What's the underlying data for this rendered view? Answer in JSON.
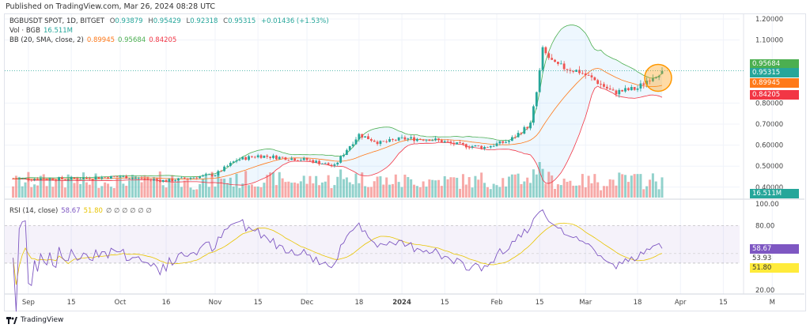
{
  "published": "Published on TradingView.com, Mar 26, 2024 08:28 UTC",
  "symbol": "BGBUSDT SPOT, 1D, BITGET",
  "ohlc": {
    "o_label": "O",
    "o": "0.93879",
    "h_label": "H",
    "h": "0.95429",
    "l_label": "L",
    "l": "0.92318",
    "c_label": "C",
    "c": "0.95315",
    "change": "+0.01436 (+1.53%)"
  },
  "vol": {
    "label": "Vol · BGB",
    "value": "16.511M"
  },
  "bb": {
    "label": "BB (20, SMA, close, 2)",
    "basis": "0.89945",
    "upper": "0.95684",
    "lower": "0.84205"
  },
  "rsi": {
    "label": "RSI (14, close)",
    "value": "58.67",
    "ma": "51.80",
    "extras": "∅ ∅ ∅ ∅ ∅ ∅",
    "level_mid": "53.93"
  },
  "footer": {
    "brand": "TradingView"
  },
  "colors": {
    "up": "#26a69a",
    "down": "#ef5350",
    "bb_basis": "#ff7a1a",
    "bb_upper": "#4caf50",
    "bb_lower": "#f23645",
    "rsi": "#7e57c2",
    "rsi_ma": "#e8c400",
    "highlight": "#ff9800"
  },
  "chart_data": [
    {
      "type": "candlestick",
      "title": "",
      "price_ticks": [
        "1.20000",
        "1.10000",
        "0.80000",
        "0.70000",
        "0.60000",
        "0.50000",
        "0.40000"
      ],
      "ylim": [
        0.4,
        1.2
      ],
      "x_ticks": [
        "Sep",
        "15",
        "Oct",
        "16",
        "Nov",
        "15",
        "Dec",
        "18",
        "2024",
        "15",
        "Feb",
        "15",
        "Mar",
        "18",
        "Apr",
        "15",
        "M"
      ],
      "close_path": [
        [
          "2023-08-27",
          0.44
        ],
        [
          "2023-09-15",
          0.44
        ],
        [
          "2023-10-01",
          0.45
        ],
        [
          "2023-10-16",
          0.43
        ],
        [
          "2023-11-01",
          0.46
        ],
        [
          "2023-11-08",
          0.53
        ],
        [
          "2023-11-15",
          0.55
        ],
        [
          "2023-12-01",
          0.53
        ],
        [
          "2023-12-10",
          0.5
        ],
        [
          "2023-12-14",
          0.58
        ],
        [
          "2023-12-18",
          0.65
        ],
        [
          "2023-12-25",
          0.61
        ],
        [
          "2024-01-01",
          0.63
        ],
        [
          "2024-01-10",
          0.63
        ],
        [
          "2024-01-20",
          0.6
        ],
        [
          "2024-01-28",
          0.59
        ],
        [
          "2024-02-05",
          0.62
        ],
        [
          "2024-02-12",
          0.7
        ],
        [
          "2024-02-14",
          0.85
        ],
        [
          "2024-02-16",
          1.05
        ],
        [
          "2024-02-20",
          0.98
        ],
        [
          "2024-02-28",
          0.95
        ],
        [
          "2024-03-05",
          0.9
        ],
        [
          "2024-03-10",
          0.85
        ],
        [
          "2024-03-18",
          0.87
        ],
        [
          "2024-03-22",
          0.92
        ],
        [
          "2024-03-26",
          0.953
        ]
      ],
      "last_prices": {
        "bb_upper": 0.95684,
        "close": 0.95315,
        "bb_basis": 0.89945,
        "bb_lower": 0.84205
      },
      "volume_last": "16.511M"
    },
    {
      "type": "line",
      "title": "RSI (14, close)",
      "ticks": [
        "100.00",
        "80.00",
        "20.00"
      ],
      "ylim": [
        20,
        100
      ],
      "band": [
        45,
        80
      ],
      "last": {
        "rsi": 58.67,
        "ma": 51.8
      }
    }
  ]
}
